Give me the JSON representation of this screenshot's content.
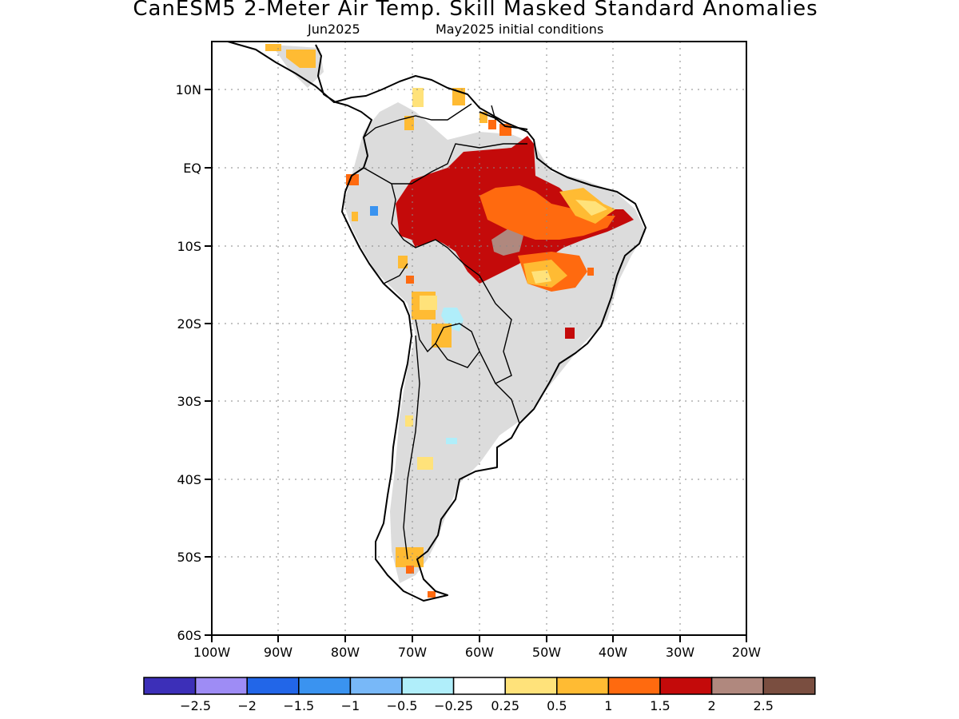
{
  "title": "CanESM5 2-Meter Air Temp. Skill Masked Standard Anomalies",
  "subtitle_left": "Jun2025",
  "subtitle_right": "May2025 initial conditions",
  "x_tick_labels": [
    "100W",
    "90W",
    "80W",
    "70W",
    "60W",
    "50W",
    "40W",
    "30W",
    "20W"
  ],
  "y_tick_labels": [
    "10N",
    "EQ",
    "10S",
    "20S",
    "30S",
    "40S",
    "50S",
    "60S"
  ],
  "colorbar": {
    "colors": [
      "#3c2fb8",
      "#9e8cf5",
      "#2266e8",
      "#3a93f0",
      "#78b8f8",
      "#b0eefa",
      "#ffffff",
      "#ffe27a",
      "#ffbb33",
      "#ff6a0f",
      "#c40a0a",
      "#b0887e",
      "#7a4e40"
    ],
    "labels": [
      "-2.5",
      "-2",
      "-1.5",
      "-1",
      "-0.5",
      "-0.25",
      "0.25",
      "0.5",
      "1",
      "1.5",
      "2",
      "2.5"
    ]
  },
  "map_colors": {
    "skill_masked": "#dcdcdc",
    "ocean": "#ffffff"
  }
}
